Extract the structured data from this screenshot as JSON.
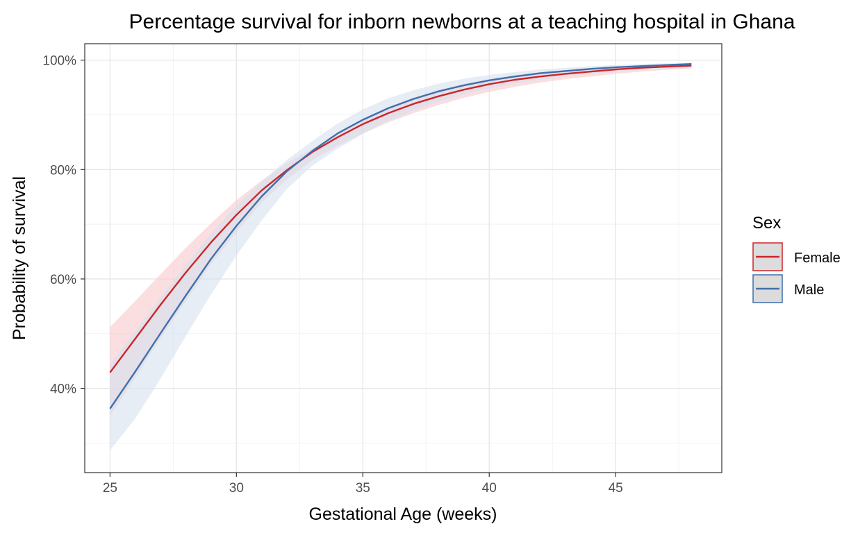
{
  "chart_data": {
    "type": "line",
    "title": "Percentage survival for inborn newborns at a teaching hospital in Ghana",
    "xlabel": "Gestational Age (weeks)",
    "ylabel": "Probability of survival",
    "xlim": [
      24,
      49.2
    ],
    "ylim": [
      0.246,
      1.03
    ],
    "x_ticks": [
      25,
      30,
      35,
      40,
      45
    ],
    "x_tick_labels": [
      "25",
      "30",
      "35",
      "40",
      "45"
    ],
    "y_ticks": [
      0.4,
      0.6,
      0.8,
      1.0
    ],
    "y_tick_labels": [
      "40%",
      "60%",
      "80%",
      "100%"
    ],
    "grid": true,
    "legend": {
      "title": "Sex",
      "position": "right"
    },
    "x": [
      25,
      26,
      27,
      28,
      29,
      30,
      31,
      32,
      33,
      34,
      35,
      36,
      37,
      38,
      39,
      40,
      41,
      42,
      43,
      44,
      45,
      46,
      47,
      48
    ],
    "series": [
      {
        "name": "Female",
        "color": "#cc2529",
        "band_color": "#f8c9cc",
        "values": [
          0.429,
          0.491,
          0.553,
          0.612,
          0.667,
          0.717,
          0.762,
          0.799,
          0.832,
          0.859,
          0.883,
          0.903,
          0.92,
          0.934,
          0.946,
          0.956,
          0.964,
          0.97,
          0.975,
          0.979,
          0.983,
          0.986,
          0.988,
          0.99
        ],
        "lower": [
          0.35,
          0.42,
          0.492,
          0.56,
          0.627,
          0.686,
          0.74,
          0.782,
          0.817,
          0.843,
          0.866,
          0.886,
          0.903,
          0.918,
          0.931,
          0.942,
          0.951,
          0.959,
          0.965,
          0.97,
          0.975,
          0.979,
          0.982,
          0.985
        ],
        "upper": [
          0.512,
          0.56,
          0.609,
          0.657,
          0.702,
          0.744,
          0.78,
          0.812,
          0.838,
          0.865,
          0.891,
          0.914,
          0.932,
          0.946,
          0.957,
          0.966,
          0.973,
          0.978,
          0.982,
          0.986,
          0.988,
          0.99,
          0.992,
          0.993
        ]
      },
      {
        "name": "Male",
        "color": "#3f6fac",
        "band_color": "#d5e1ef",
        "values": [
          0.363,
          0.431,
          0.501,
          0.57,
          0.637,
          0.697,
          0.751,
          0.797,
          0.834,
          0.866,
          0.891,
          0.912,
          0.929,
          0.943,
          0.954,
          0.963,
          0.97,
          0.976,
          0.98,
          0.984,
          0.987,
          0.989,
          0.991,
          0.993
        ],
        "lower": [
          0.287,
          0.345,
          0.418,
          0.496,
          0.572,
          0.643,
          0.707,
          0.765,
          0.807,
          0.838,
          0.865,
          0.889,
          0.908,
          0.924,
          0.937,
          0.948,
          0.957,
          0.964,
          0.97,
          0.975,
          0.979,
          0.982,
          0.985,
          0.988
        ],
        "upper": [
          0.444,
          0.505,
          0.566,
          0.627,
          0.683,
          0.734,
          0.778,
          0.818,
          0.852,
          0.884,
          0.91,
          0.93,
          0.945,
          0.957,
          0.966,
          0.973,
          0.978,
          0.983,
          0.986,
          0.989,
          0.991,
          0.993,
          0.994,
          0.995
        ]
      }
    ]
  }
}
